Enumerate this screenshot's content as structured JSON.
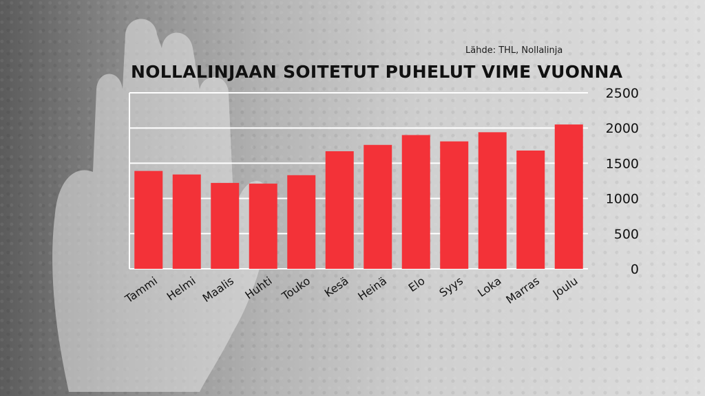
{
  "source": "Lähde: THL, Nollalinja",
  "colors": {
    "bar": "#f33238",
    "grid": "#ffffff"
  },
  "chart_data": {
    "type": "bar",
    "title": "NOLLALINJAAN SOITETUT PUHELUT VIME VUONNA",
    "categories": [
      "Tammi",
      "Helmi",
      "Maalis",
      "Huhti",
      "Touko",
      "Kesä",
      "Heinä",
      "Elo",
      "Syys",
      "Loka",
      "Marras",
      "Joulu"
    ],
    "values": [
      1390,
      1340,
      1220,
      1210,
      1330,
      1670,
      1760,
      1900,
      1810,
      1940,
      1680,
      2050
    ],
    "ylim": [
      0,
      2500
    ],
    "yticks": [
      "0",
      "500",
      "1000",
      "1500",
      "2000",
      "2500"
    ],
    "ytick_values": [
      0,
      500,
      1000,
      1500,
      2000,
      2500
    ],
    "grid": true,
    "yaxis_position": "right"
  }
}
